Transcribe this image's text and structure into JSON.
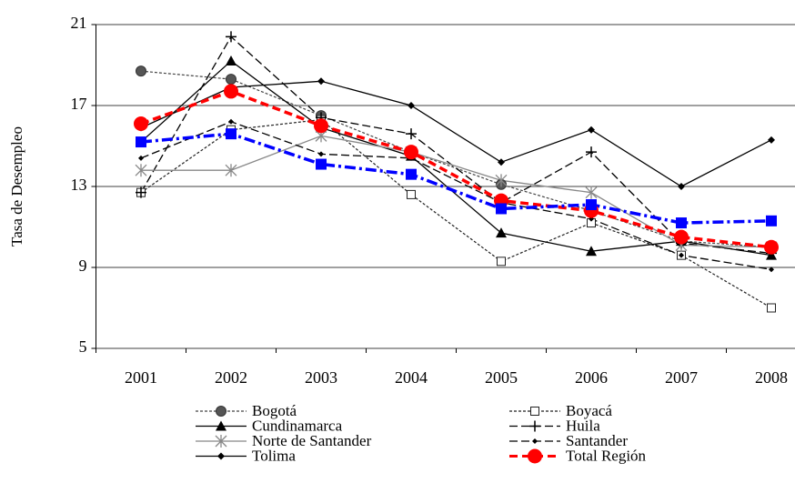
{
  "chart_data": {
    "type": "line",
    "y_label": "Tasa de Desempleo",
    "categories": [
      "2001",
      "2002",
      "2003",
      "2004",
      "2005",
      "2006",
      "2007",
      "2008"
    ],
    "ylim": [
      5,
      21
    ],
    "yticks": [
      5,
      9,
      13,
      17,
      21
    ],
    "grid": true,
    "series": [
      {
        "name": "Bogotá",
        "color": "#444444",
        "marker": "circle",
        "dash": "3,2",
        "width": 1.2,
        "values": [
          18.7,
          18.3,
          16.5,
          14.7,
          13.1,
          11.8,
          10.3,
          10.0
        ]
      },
      {
        "name": "Boyacá",
        "color": "#222222",
        "marker": "square-open",
        "dash": "3,2",
        "width": 1.2,
        "values": [
          12.7,
          15.8,
          16.3,
          12.6,
          9.3,
          11.2,
          9.6,
          7.0
        ]
      },
      {
        "name": "Cundinamarca",
        "color": "#000000",
        "marker": "triangle",
        "dash": "",
        "width": 1.3,
        "values": [
          15.2,
          19.2,
          15.9,
          14.5,
          10.7,
          9.8,
          10.3,
          9.6
        ]
      },
      {
        "name": "Huila",
        "color": "#000000",
        "marker": "plus",
        "dash": "9,4",
        "width": 1.3,
        "values": [
          12.7,
          20.4,
          16.4,
          15.6,
          12.2,
          14.7,
          10.2,
          9.7
        ]
      },
      {
        "name": "Norte de Santander",
        "color": "#888888",
        "marker": "asterisk",
        "dash": "",
        "width": 1.3,
        "values": [
          13.8,
          13.8,
          15.5,
          14.7,
          13.3,
          12.7,
          10.1,
          10.0
        ]
      },
      {
        "name": "Santander",
        "color": "#000000",
        "marker": "dot",
        "dash": "9,4",
        "width": 1.3,
        "values": [
          14.4,
          16.2,
          14.6,
          14.4,
          12.2,
          11.4,
          9.6,
          8.9
        ]
      },
      {
        "name": "Tolima",
        "color": "#000000",
        "marker": "diamond",
        "dash": "",
        "width": 1.3,
        "values": [
          15.9,
          17.9,
          18.2,
          17.0,
          14.2,
          15.8,
          13.0,
          15.3
        ]
      },
      {
        "name": "Total Región",
        "color": "#ff0000",
        "marker": "circle-big",
        "dash": "9,5",
        "width": 3.5,
        "values": [
          16.1,
          17.7,
          16.0,
          14.7,
          12.3,
          11.8,
          10.5,
          10.0
        ]
      },
      {
        "color": "#0000ff",
        "marker": "square-big",
        "dash": "12,4,3,4",
        "width": 3.5,
        "values": [
          15.2,
          15.6,
          14.1,
          13.6,
          11.9,
          12.1,
          11.2,
          11.3
        ]
      }
    ]
  }
}
